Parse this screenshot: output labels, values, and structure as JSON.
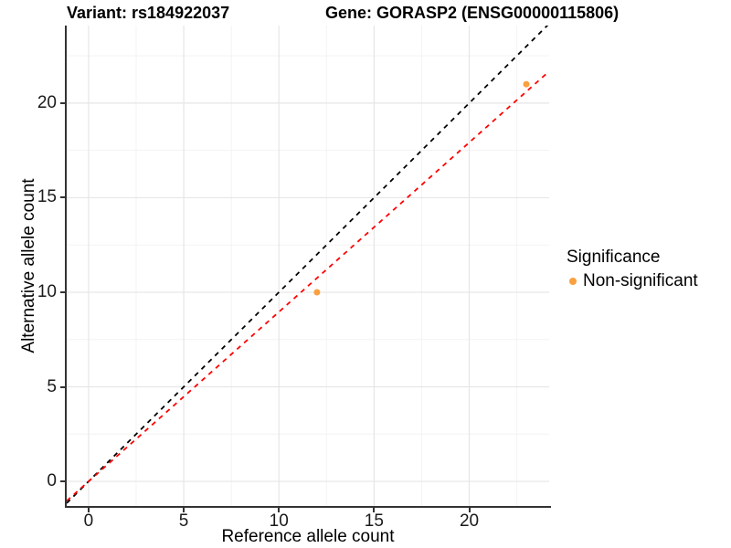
{
  "chart_data": {
    "type": "scatter",
    "title_left": "Variant: rs184922037",
    "title_right": "Gene: GORASP2 (ENSG00000115806)",
    "xlabel": "Reference allele count",
    "ylabel": "Alternative allele count",
    "xlim": [
      -1.15,
      24.2
    ],
    "ylim": [
      -1.3,
      24.1
    ],
    "xticks": [
      0,
      5,
      10,
      15,
      20
    ],
    "yticks": [
      0,
      5,
      10,
      15,
      20
    ],
    "grid": {
      "major": true,
      "minor": true
    },
    "legend_position": "right",
    "points": [
      {
        "x": 12,
        "y": 10,
        "series": "Non-significant"
      },
      {
        "x": 23,
        "y": 21,
        "series": "Non-significant"
      }
    ],
    "point_color": "#F9A03F",
    "lines": [
      {
        "name": "identity",
        "slope": 1,
        "intercept": 0,
        "color": "#000000",
        "style": "dashed"
      },
      {
        "name": "fit",
        "slope": 0.896,
        "intercept": 0,
        "color": "#FF0000",
        "style": "dashed"
      }
    ]
  },
  "legend": {
    "title": "Significance",
    "items": [
      {
        "label": "Non-significant",
        "color": "#F9A03F"
      }
    ]
  },
  "colors": {
    "background": "#FFFFFF",
    "grid_major": "#E6E6E6",
    "grid_minor": "#F3F3F3",
    "axis_line": "#333333",
    "text": "#000000"
  }
}
